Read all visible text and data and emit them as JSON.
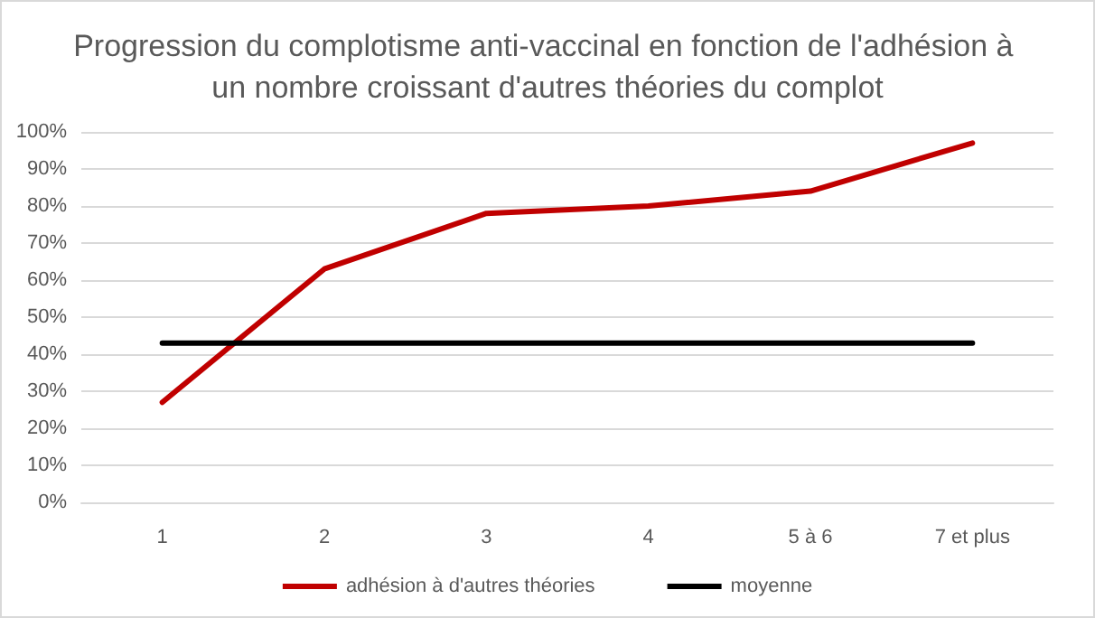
{
  "chart_data": {
    "type": "line",
    "title": "Progression du complotisme anti-vaccinal en fonction de l'adhésion à un nombre croissant d'autres théories du complot",
    "categories": [
      "1",
      "2",
      "3",
      "4",
      "5 à 6",
      "7 et plus"
    ],
    "series": [
      {
        "name": "adhésion à d'autres théories",
        "color": "#c00000",
        "values": [
          27,
          63,
          78,
          80,
          84,
          97
        ]
      },
      {
        "name": "moyenne",
        "color": "#000000",
        "values": [
          43,
          43,
          43,
          43,
          43,
          43
        ]
      }
    ],
    "ylim": [
      0,
      100
    ],
    "yticks": [
      {
        "value": 0,
        "label": "0%"
      },
      {
        "value": 10,
        "label": "10%"
      },
      {
        "value": 20,
        "label": "20%"
      },
      {
        "value": 30,
        "label": "30%"
      },
      {
        "value": 40,
        "label": "40%"
      },
      {
        "value": 50,
        "label": "50%"
      },
      {
        "value": 60,
        "label": "60%"
      },
      {
        "value": 70,
        "label": "70%"
      },
      {
        "value": 80,
        "label": "80%"
      },
      {
        "value": 90,
        "label": "90%"
      },
      {
        "value": 100,
        "label": "100%"
      }
    ],
    "grid": "y",
    "legend": "bottom",
    "marker": "none",
    "line_style": "solid"
  }
}
